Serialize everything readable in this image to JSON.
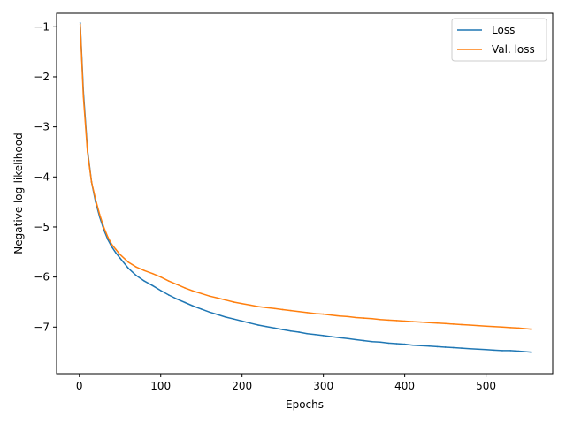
{
  "chart_data": {
    "type": "line",
    "title": "",
    "xlabel": "Epochs",
    "ylabel": "Negative log-likelihood",
    "xlim": [
      -28,
      582
    ],
    "ylim": [
      -7.93,
      -0.73
    ],
    "xticks": [
      0,
      100,
      200,
      300,
      400,
      500
    ],
    "yticks": [
      -7,
      -6,
      -5,
      -4,
      -3,
      -2,
      -1
    ],
    "xtick_labels": [
      "0",
      "100",
      "200",
      "300",
      "400",
      "500"
    ],
    "ytick_labels": [
      "−7",
      "−6",
      "−5",
      "−4",
      "−3",
      "−2",
      "−1"
    ],
    "grid": false,
    "legend_position": "top-right",
    "series": [
      {
        "name": "Loss",
        "color": "#1f77b4",
        "x": [
          1,
          5,
          10,
          15,
          20,
          25,
          30,
          35,
          40,
          45,
          50,
          60,
          70,
          80,
          90,
          100,
          110,
          120,
          130,
          140,
          150,
          160,
          170,
          180,
          190,
          200,
          210,
          220,
          230,
          240,
          250,
          260,
          270,
          280,
          290,
          300,
          310,
          320,
          330,
          340,
          350,
          360,
          370,
          380,
          390,
          400,
          410,
          420,
          430,
          440,
          450,
          460,
          470,
          480,
          490,
          500,
          510,
          520,
          530,
          540,
          555
        ],
        "y": [
          -0.92,
          -2.3,
          -3.45,
          -4.1,
          -4.5,
          -4.8,
          -5.05,
          -5.25,
          -5.4,
          -5.52,
          -5.62,
          -5.82,
          -5.97,
          -6.08,
          -6.17,
          -6.27,
          -6.36,
          -6.44,
          -6.51,
          -6.58,
          -6.64,
          -6.7,
          -6.75,
          -6.8,
          -6.84,
          -6.88,
          -6.92,
          -6.96,
          -6.99,
          -7.02,
          -7.05,
          -7.08,
          -7.1,
          -7.13,
          -7.15,
          -7.17,
          -7.19,
          -7.21,
          -7.23,
          -7.25,
          -7.27,
          -7.29,
          -7.3,
          -7.32,
          -7.33,
          -7.34,
          -7.36,
          -7.37,
          -7.38,
          -7.39,
          -7.4,
          -7.41,
          -7.42,
          -7.43,
          -7.44,
          -7.45,
          -7.46,
          -7.47,
          -7.47,
          -7.48,
          -7.5
        ]
      },
      {
        "name": "Val. loss",
        "color": "#ff7f0e",
        "x": [
          1,
          5,
          10,
          15,
          20,
          25,
          30,
          35,
          40,
          45,
          50,
          60,
          70,
          80,
          90,
          100,
          110,
          120,
          130,
          140,
          150,
          160,
          170,
          180,
          190,
          200,
          210,
          220,
          230,
          240,
          250,
          260,
          270,
          280,
          290,
          300,
          310,
          320,
          330,
          340,
          350,
          360,
          370,
          380,
          390,
          400,
          410,
          420,
          430,
          440,
          450,
          460,
          470,
          480,
          490,
          500,
          510,
          520,
          530,
          540,
          555
        ],
        "y": [
          -0.95,
          -2.4,
          -3.5,
          -4.1,
          -4.45,
          -4.75,
          -5.0,
          -5.2,
          -5.35,
          -5.45,
          -5.55,
          -5.7,
          -5.8,
          -5.87,
          -5.93,
          -6.0,
          -6.08,
          -6.15,
          -6.22,
          -6.28,
          -6.33,
          -6.38,
          -6.42,
          -6.46,
          -6.5,
          -6.53,
          -6.56,
          -6.59,
          -6.61,
          -6.63,
          -6.65,
          -6.67,
          -6.69,
          -6.71,
          -6.73,
          -6.74,
          -6.76,
          -6.78,
          -6.79,
          -6.81,
          -6.82,
          -6.83,
          -6.85,
          -6.86,
          -6.87,
          -6.88,
          -6.89,
          -6.9,
          -6.91,
          -6.92,
          -6.93,
          -6.94,
          -6.95,
          -6.96,
          -6.97,
          -6.98,
          -6.99,
          -7.0,
          -7.01,
          -7.02,
          -7.04
        ]
      }
    ]
  }
}
